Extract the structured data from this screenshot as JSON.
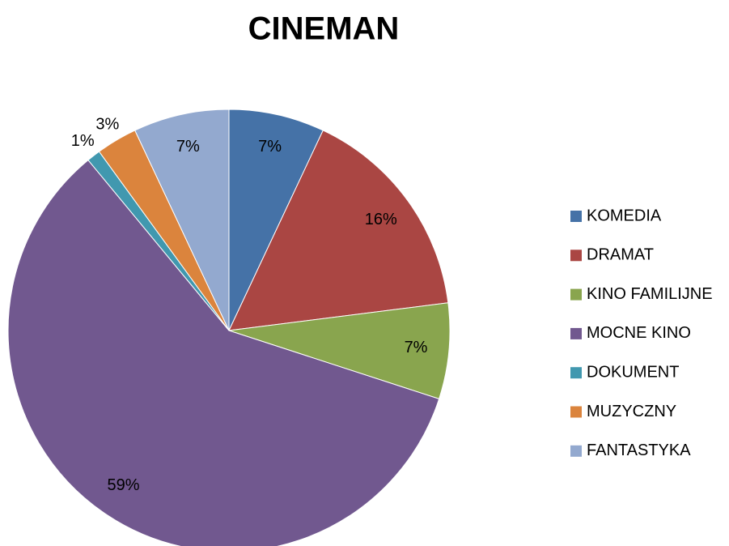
{
  "chart_data": {
    "type": "pie",
    "title": "CINEMAN",
    "categories": [
      "KOMEDIA",
      "DRAMAT",
      "KINO FAMILIJNE",
      "MOCNE KINO",
      "DOKUMENT",
      "MUZYCZNY",
      "FANTASTYKA"
    ],
    "values": [
      7,
      16,
      7,
      59,
      1,
      3,
      7
    ],
    "value_labels": [
      "7%",
      "16%",
      "7%",
      "59%",
      "1%",
      "3%",
      "7%"
    ],
    "colors": [
      "#4572a7",
      "#aa4643",
      "#89a54e",
      "#71588f",
      "#4198af",
      "#db843d",
      "#93a9cf"
    ],
    "legend": "right"
  }
}
